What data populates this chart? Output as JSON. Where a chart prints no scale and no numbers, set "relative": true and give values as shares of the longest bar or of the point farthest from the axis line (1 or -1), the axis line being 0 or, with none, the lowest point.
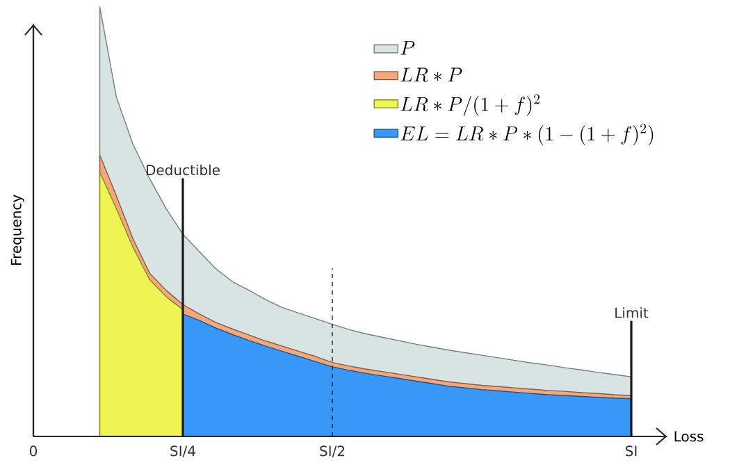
{
  "chart_data": {
    "type": "area",
    "relative": true,
    "xlabel": "Loss",
    "ylabel": "Frequency",
    "categories": [
      "0",
      null,
      null,
      null,
      null,
      null,
      null,
      null,
      null,
      "SI/4",
      null,
      null,
      null,
      null,
      null,
      null,
      null,
      null,
      "SI/2",
      null,
      null,
      null,
      null,
      null,
      null,
      null,
      null,
      null,
      null,
      null,
      null,
      null,
      null,
      null,
      null,
      null,
      "SI"
    ],
    "legend": "top right",
    "series": [
      {
        "name": "P",
        "color": "#d8e3e3",
        "values": [
          null,
          null,
          null,
          null,
          1.0,
          0.79,
          0.68,
          0.6,
          0.53,
          0.471,
          0.43,
          0.39,
          0.36,
          0.34,
          0.318,
          0.3,
          0.287,
          0.274,
          0.261,
          0.249,
          0.239,
          0.231,
          0.223,
          0.215,
          0.208,
          0.201,
          0.195,
          0.189,
          0.183,
          0.177,
          0.171,
          0.166,
          0.16,
          0.155,
          0.149,
          0.144,
          0.139
        ]
      },
      {
        "name": "LR*P",
        "color": "#f4a77a",
        "values": [
          null,
          null,
          null,
          null,
          0.655,
          0.56,
          0.46,
          0.38,
          0.34,
          0.307,
          0.285,
          0.265,
          0.25,
          0.236,
          0.222,
          0.21,
          0.198,
          0.186,
          0.172,
          0.164,
          0.157,
          0.151,
          0.145,
          0.139,
          0.133,
          0.127,
          0.123,
          0.119,
          0.116,
          0.113,
          0.11,
          0.107,
          0.105,
          0.102,
          0.1,
          0.097,
          0.095
        ]
      },
      {
        "name": "LR*P/(1+f)^{2}",
        "color": "#eef552",
        "values": [
          null,
          null,
          null,
          null,
          0.615,
          0.53,
          0.44,
          0.365,
          0.325,
          0.295,
          null,
          null,
          null,
          null,
          null,
          null,
          null,
          null,
          null,
          null,
          null,
          null,
          null,
          null,
          null,
          null,
          null,
          null,
          null,
          null,
          null,
          null,
          null,
          null,
          null,
          null,
          null
        ]
      },
      {
        "name": "EL=LR*P*(1-(1+f)^{2})",
        "color": "#3898f8",
        "values": [
          null,
          null,
          null,
          null,
          null,
          null,
          null,
          null,
          null,
          0.285,
          0.27,
          0.252,
          0.237,
          0.223,
          0.21,
          0.198,
          0.186,
          0.174,
          0.162,
          0.154,
          0.147,
          0.141,
          0.135,
          0.129,
          0.123,
          0.117,
          0.113,
          0.109,
          0.106,
          0.103,
          0.1,
          0.097,
          0.095,
          0.093,
          0.091,
          0.089,
          0.088
        ]
      }
    ],
    "ref_lines": [
      {
        "axis": "x",
        "value": "SI/4",
        "label": "Deductible",
        "line_style": "solid"
      },
      {
        "axis": "x",
        "value": "SI/2",
        "line_style": "dashed"
      },
      {
        "axis": "x",
        "value": "SI",
        "label": "Limit",
        "line_style": "solid"
      }
    ]
  }
}
